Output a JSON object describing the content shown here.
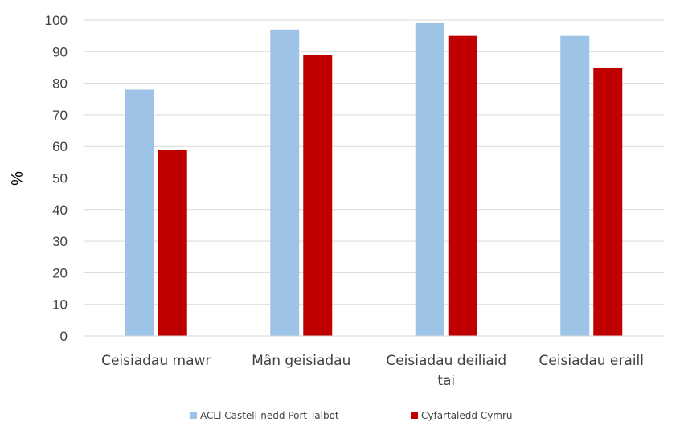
{
  "chart_data": {
    "type": "bar",
    "ylabel": "%",
    "ylim": [
      0,
      100
    ],
    "yticks": [
      0,
      10,
      20,
      30,
      40,
      50,
      60,
      70,
      80,
      90,
      100
    ],
    "grid": true,
    "legend_position": "bottom",
    "categories": [
      [
        "Ceisiadau mawr"
      ],
      [
        "Mân geisiadau"
      ],
      [
        "Ceisiadau deiliaid",
        "tai"
      ],
      [
        "Ceisiadau eraill"
      ]
    ],
    "series": [
      {
        "name": "ACLl Castell-nedd Port Talbot",
        "color": "#9DC3E6",
        "values": [
          78,
          97,
          99,
          95
        ]
      },
      {
        "name": "Cyfartaledd Cymru",
        "color": "#C00000",
        "values": [
          59,
          89,
          95,
          85
        ]
      }
    ]
  }
}
